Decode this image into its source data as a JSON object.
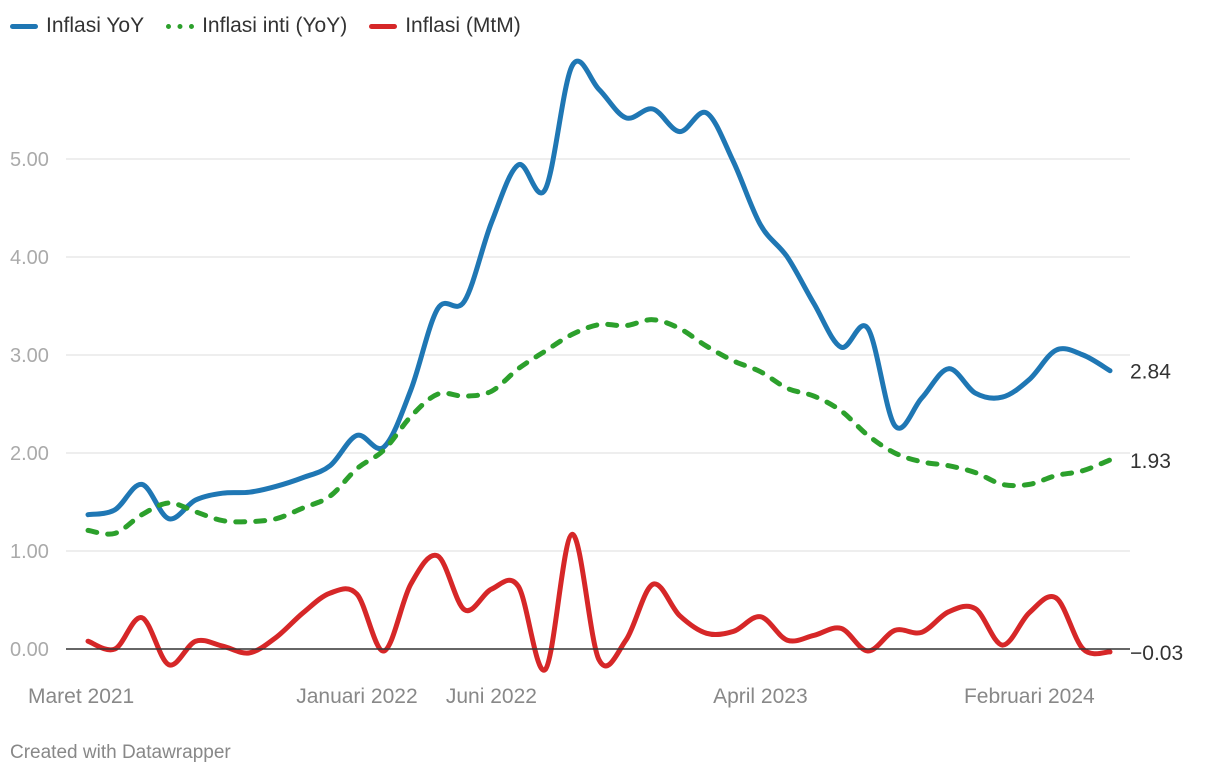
{
  "legend": [
    {
      "label": "Inflasi YoY",
      "color": "#1f77b4",
      "style": "solid"
    },
    {
      "label": "Inflasi inti (YoY)",
      "color": "#2ca02c",
      "style": "dashed"
    },
    {
      "label": "Inflasi (MtM)",
      "color": "#d62728",
      "style": "solid"
    }
  ],
  "footer": "Created with Datawrapper",
  "chart_data": {
    "type": "line",
    "x_start": "2021-03",
    "x": [
      "2021-03",
      "2021-04",
      "2021-05",
      "2021-06",
      "2021-07",
      "2021-08",
      "2021-09",
      "2021-10",
      "2021-11",
      "2021-12",
      "2022-01",
      "2022-02",
      "2022-03",
      "2022-04",
      "2022-05",
      "2022-06",
      "2022-07",
      "2022-08",
      "2022-09",
      "2022-10",
      "2022-11",
      "2022-12",
      "2023-01",
      "2023-02",
      "2023-03",
      "2023-04",
      "2023-05",
      "2023-06",
      "2023-07",
      "2023-08",
      "2023-09",
      "2023-10",
      "2023-11",
      "2023-12",
      "2024-01",
      "2024-02",
      "2024-03",
      "2024-04",
      "2024-05"
    ],
    "x_tick_labels": [
      {
        "index": 0,
        "label": "Maret 2021"
      },
      {
        "index": 10,
        "label": "Januari 2022"
      },
      {
        "index": 15,
        "label": "Juni 2022"
      },
      {
        "index": 25,
        "label": "April 2023"
      },
      {
        "index": 35,
        "label": "Februari 2024"
      }
    ],
    "ylim": [
      0,
      6
    ],
    "y_ticks": [
      {
        "value": 0,
        "label": "0.00"
      },
      {
        "value": 1,
        "label": "1.00"
      },
      {
        "value": 2,
        "label": "2.00"
      },
      {
        "value": 3,
        "label": "3.00"
      },
      {
        "value": 4,
        "label": "4.00"
      },
      {
        "value": 5,
        "label": "5.00"
      }
    ],
    "grid": true,
    "series": [
      {
        "name": "Inflasi YoY",
        "color": "#1f77b4",
        "style": "solid",
        "end_label": "2.84",
        "values": [
          1.37,
          1.42,
          1.68,
          1.33,
          1.52,
          1.59,
          1.6,
          1.66,
          1.75,
          1.87,
          2.18,
          2.06,
          2.64,
          3.47,
          3.55,
          4.35,
          4.94,
          4.69,
          5.95,
          5.71,
          5.42,
          5.51,
          5.28,
          5.47,
          4.97,
          4.33,
          4.0,
          3.52,
          3.08,
          3.27,
          2.28,
          2.56,
          2.86,
          2.61,
          2.57,
          2.75,
          3.05,
          3.0,
          2.84
        ]
      },
      {
        "name": "Inflasi inti (YoY)",
        "color": "#2ca02c",
        "style": "dashed",
        "end_label": "1.93",
        "values": [
          1.21,
          1.18,
          1.37,
          1.49,
          1.4,
          1.31,
          1.3,
          1.33,
          1.44,
          1.56,
          1.84,
          2.03,
          2.37,
          2.6,
          2.58,
          2.63,
          2.86,
          3.04,
          3.21,
          3.31,
          3.3,
          3.36,
          3.27,
          3.09,
          2.94,
          2.83,
          2.66,
          2.58,
          2.43,
          2.18,
          2.0,
          1.91,
          1.87,
          1.8,
          1.68,
          1.68,
          1.77,
          1.82,
          1.93
        ]
      },
      {
        "name": "Inflasi (MtM)",
        "color": "#d62728",
        "style": "solid",
        "end_label": "−0.03",
        "values": [
          0.08,
          0.0,
          0.32,
          -0.16,
          0.08,
          0.03,
          -0.04,
          0.12,
          0.37,
          0.57,
          0.56,
          -0.02,
          0.66,
          0.95,
          0.4,
          0.61,
          0.64,
          -0.21,
          1.17,
          -0.11,
          0.09,
          0.66,
          0.34,
          0.16,
          0.18,
          0.33,
          0.09,
          0.14,
          0.21,
          -0.02,
          0.19,
          0.17,
          0.38,
          0.41,
          0.04,
          0.37,
          0.52,
          0.0,
          -0.03
        ]
      }
    ]
  }
}
